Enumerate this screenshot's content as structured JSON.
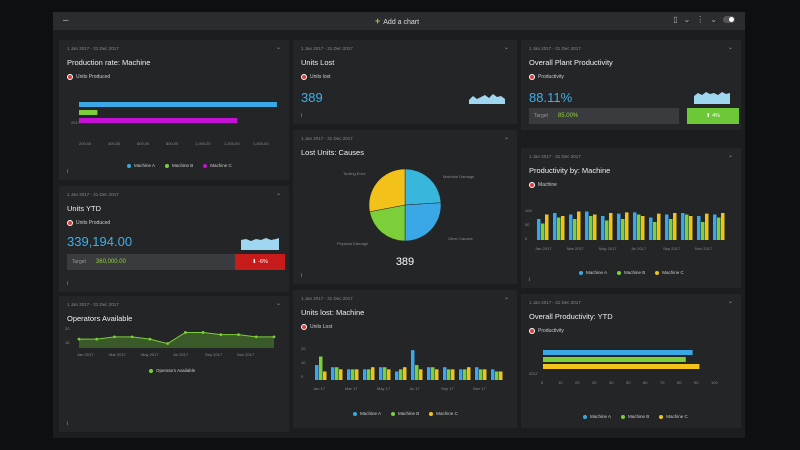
{
  "topbar": {
    "add_chart": "Add a chart",
    "menu_icon": "minus-icon"
  },
  "colors": {
    "blue": "#3aa8e6",
    "green": "#7ccf38",
    "magenta": "#c511d6",
    "yellow": "#f2c21b",
    "red": "#c81b1b",
    "up_green": "#6cc837"
  },
  "cards": {
    "prod_rate": {
      "date": "1 Jan 2017 - 31 Dec 2017",
      "title": "Production rate: Machine",
      "metric": "Units Produced",
      "row_label": "2017",
      "ticks": [
        "200,00",
        "400,00",
        "600,00",
        "800,00",
        "1,000,00",
        "1,200,00",
        "1,400,00"
      ],
      "legend": [
        "Machine A",
        "Machine B",
        "Machine C"
      ]
    },
    "units_lost": {
      "date": "1 Jan 2017 - 31 Dec 2017",
      "title": "Units Lost",
      "metric": "Units lost",
      "value": "389"
    },
    "plant_prod": {
      "date": "1 Jan 2017 - 31 Dec 2017",
      "title": "Overall Plant Productivity",
      "metric": "Productivity",
      "value": "88.11%",
      "target_label": "Target",
      "target_value": "85.00%",
      "delta": "4%"
    },
    "units_ytd": {
      "date": "1 Jan 2017 - 31 Dec 2017",
      "title": "Units YTD",
      "metric": "Units Produced",
      "value": "339,194.00",
      "target_label": "Target",
      "target_value": "360,000.00",
      "delta": "-6%"
    },
    "lost_causes": {
      "date": "1 Jan 2017 - 31 Dec 2017",
      "title": "Lost Units: Causes",
      "total": "389",
      "labels": [
        "Tooling Error",
        "Machine Damage",
        "Other Causes",
        "Physical Damage"
      ]
    },
    "prod_machine": {
      "date": "1 Jan 2017 - 31 Dec 2017",
      "title": "Productivity by: Machine",
      "metric": "Machine",
      "yticks": [
        "100",
        "50",
        "0"
      ],
      "xticks": [
        "Jan 2017",
        "Mar 2017",
        "May 2017",
        "Jul 2017",
        "Sep 2017",
        "Nov 2017"
      ],
      "legend": [
        "Machine A",
        "Machine B",
        "Machine C"
      ]
    },
    "operators": {
      "date": "1 Jan 2017 - 31 Dec 2017",
      "title": "Operators Available",
      "yticks": [
        "20",
        "15"
      ],
      "xticks": [
        "Jan 2017",
        "Mar 2017",
        "May 2017",
        "Jul 2017",
        "Sep 2017",
        "Nov 2017"
      ],
      "legend": "Operators Available"
    },
    "lost_machine": {
      "date": "1 Jan 2017 - 31 Dec 2017",
      "title": "Units lost: Machine",
      "metric": "Units Lost",
      "yticks": [
        "20",
        "10",
        "0"
      ],
      "xticks": [
        "Jan 17",
        "Mar 17",
        "May 17",
        "Jul 17",
        "Sep 17",
        "Nov 17"
      ],
      "legend": [
        "Machine A",
        "Machine B",
        "Machine C"
      ]
    },
    "overall_ytd": {
      "date": "1 Jan 2017 - 31 Dec 2017",
      "title": "Overall Productivity: YTD",
      "metric": "Productivity",
      "row_label": "2017",
      "xticks": [
        "0",
        "10",
        "20",
        "30",
        "40",
        "50",
        "60",
        "70",
        "80",
        "90",
        "100"
      ],
      "legend": [
        "Machine A",
        "Machine B",
        "Machine C"
      ]
    }
  },
  "chart_data": [
    {
      "type": "bar",
      "orientation": "horizontal",
      "categories": [
        "2017"
      ],
      "series": [
        {
          "name": "Machine A",
          "values": [
            1400
          ]
        },
        {
          "name": "Machine B",
          "values": [
            130
          ]
        },
        {
          "name": "Machine C",
          "values": [
            1120
          ]
        }
      ]
    },
    {
      "type": "pie",
      "categories": [
        "Tooling Error",
        "Machine Damage",
        "Other Causes",
        "Physical Damage"
      ],
      "values": [
        24,
        26,
        22,
        28
      ]
    },
    {
      "type": "bar",
      "categories": [
        "Jan",
        "Feb",
        "Mar",
        "Apr",
        "May",
        "Jun",
        "Jul",
        "Aug",
        "Sep",
        "Oct",
        "Nov",
        "Dec"
      ],
      "series": [
        {
          "name": "Machine A",
          "values": [
            70,
            90,
            85,
            95,
            80,
            88,
            92,
            75,
            85,
            90,
            80,
            85
          ]
        },
        {
          "name": "Machine B",
          "values": [
            55,
            75,
            70,
            80,
            65,
            70,
            85,
            60,
            70,
            85,
            60,
            75
          ]
        },
        {
          "name": "Machine C",
          "values": [
            85,
            80,
            95,
            85,
            90,
            92,
            80,
            88,
            90,
            80,
            88,
            90
          ]
        }
      ]
    },
    {
      "type": "area",
      "x": [
        "Jan",
        "Feb",
        "Mar",
        "Apr",
        "May",
        "Jun",
        "Jul",
        "Aug",
        "Sep",
        "Oct",
        "Nov",
        "Dec"
      ],
      "series": [
        {
          "name": "Operators Available",
          "values": [
            16,
            16,
            17,
            17,
            16,
            14,
            19,
            19,
            18,
            18,
            17,
            17
          ]
        }
      ]
    },
    {
      "type": "bar",
      "categories": [
        "1",
        "2",
        "3",
        "4",
        "5",
        "6",
        "7",
        "8",
        "9",
        "10",
        "11",
        "12"
      ],
      "series": [
        {
          "name": "Machine A",
          "values": [
            7,
            6,
            5,
            5,
            6,
            4,
            14,
            6,
            6,
            5,
            6,
            5
          ]
        },
        {
          "name": "Machine B",
          "values": [
            11,
            6,
            5,
            5,
            6,
            5,
            7,
            6,
            5,
            5,
            5,
            4
          ]
        },
        {
          "name": "Machine C",
          "values": [
            4,
            5,
            5,
            6,
            5,
            6,
            5,
            5,
            5,
            6,
            5,
            4
          ]
        }
      ]
    },
    {
      "type": "bar",
      "orientation": "horizontal",
      "categories": [
        "2017"
      ],
      "series": [
        {
          "name": "Machine A",
          "values": [
            88
          ]
        },
        {
          "name": "Machine B",
          "values": [
            84
          ]
        },
        {
          "name": "Machine C",
          "values": [
            92
          ]
        }
      ]
    }
  ]
}
